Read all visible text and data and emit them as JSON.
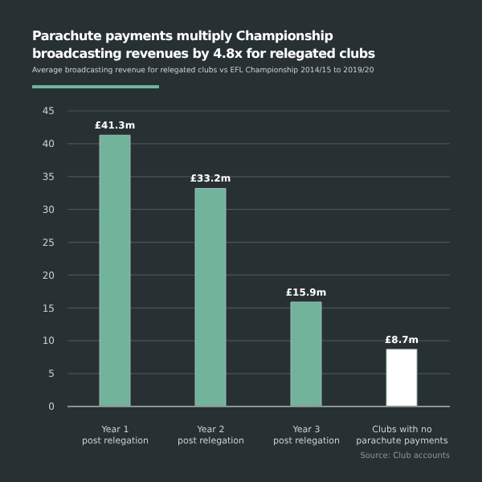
{
  "chart_data": {
    "type": "bar",
    "title": "Parachute payments multiply Championship broadcasting revenues by 4.8x for relegated clubs",
    "subtitle": "Average broadcasting revenue for relegated clubs vs EFL Championship 2014/15 to 2019/20",
    "categories": [
      "Year 1\npost relegation",
      "Year 2\npost relegation",
      "Year 3\npost relegation",
      "Clubs with no\nparachute payments"
    ],
    "values": [
      41.3,
      33.2,
      15.9,
      8.7
    ],
    "colors": [
      "#72b39b",
      "#72b39b",
      "#72b39b",
      "#ffffff"
    ],
    "value_labels": [
      "£41.3m",
      "£33.2m",
      "£15.9m",
      "£8.7m"
    ],
    "ylim": [
      0,
      45
    ],
    "yticks": [
      0,
      5,
      10,
      15,
      20,
      25,
      30,
      35,
      40,
      45
    ],
    "grid": "y",
    "annotations": [
      "Source: Club accounts"
    ]
  }
}
